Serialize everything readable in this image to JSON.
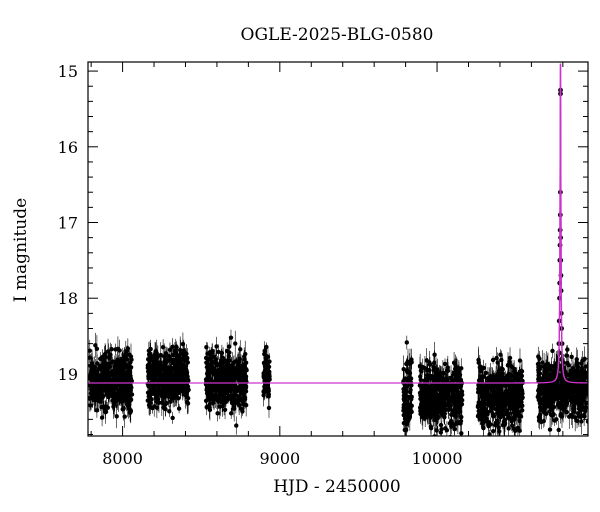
{
  "chart_data": {
    "type": "scatter",
    "title": "OGLE-2025-BLG-0580",
    "xlabel": "HJD - 2450000",
    "ylabel": "I magnitude",
    "xlim": [
      7780,
      10960
    ],
    "ylim": [
      19.82,
      14.88
    ],
    "y_inverted": true,
    "grid": false,
    "legend": "none",
    "x_ticks": [
      8000,
      9000,
      10000
    ],
    "y_ticks": [
      15,
      16,
      17,
      18,
      19
    ],
    "baseline_magnitude": 19.12,
    "seasons": [
      {
        "start": 7790,
        "end": 8060,
        "center_mag": 19.1,
        "spread": 0.38
      },
      {
        "start": 8160,
        "end": 8420,
        "center_mag": 19.05,
        "spread": 0.36
      },
      {
        "start": 8530,
        "end": 8790,
        "center_mag": 19.1,
        "spread": 0.38
      },
      {
        "start": 8895,
        "end": 8935,
        "center_mag": 19.0,
        "spread": 0.3
      },
      {
        "start": 9785,
        "end": 9840,
        "center_mag": 19.3,
        "spread": 0.45
      },
      {
        "start": 9890,
        "end": 10160,
        "center_mag": 19.3,
        "spread": 0.42
      },
      {
        "start": 10260,
        "end": 10545,
        "center_mag": 19.3,
        "spread": 0.42
      },
      {
        "start": 10640,
        "end": 10960,
        "center_mag": 19.2,
        "spread": 0.4
      }
    ],
    "event_points": [
      {
        "x": 10775,
        "y": 18.6
      },
      {
        "x": 10777,
        "y": 18.3
      },
      {
        "x": 10779,
        "y": 18.0
      },
      {
        "x": 10780,
        "y": 17.8
      },
      {
        "x": 10781,
        "y": 17.5
      },
      {
        "x": 10782,
        "y": 17.3
      },
      {
        "x": 10783,
        "y": 17.1
      },
      {
        "x": 10784,
        "y": 16.9
      },
      {
        "x": 10784.5,
        "y": 16.6
      },
      {
        "x": 10785,
        "y": 15.3
      },
      {
        "x": 10785.2,
        "y": 15.25
      },
      {
        "x": 10786,
        "y": 17.2
      },
      {
        "x": 10787,
        "y": 17.5
      },
      {
        "x": 10788,
        "y": 17.7
      },
      {
        "x": 10789,
        "y": 17.9
      },
      {
        "x": 10790,
        "y": 18.2
      },
      {
        "x": 10792,
        "y": 18.4
      },
      {
        "x": 10795,
        "y": 18.6
      }
    ],
    "model": {
      "color": "#cc33cc",
      "baseline": 19.12,
      "t0": 10785,
      "peak_mag": 14.9,
      "tE": 8
    },
    "point_color": "#000000"
  }
}
